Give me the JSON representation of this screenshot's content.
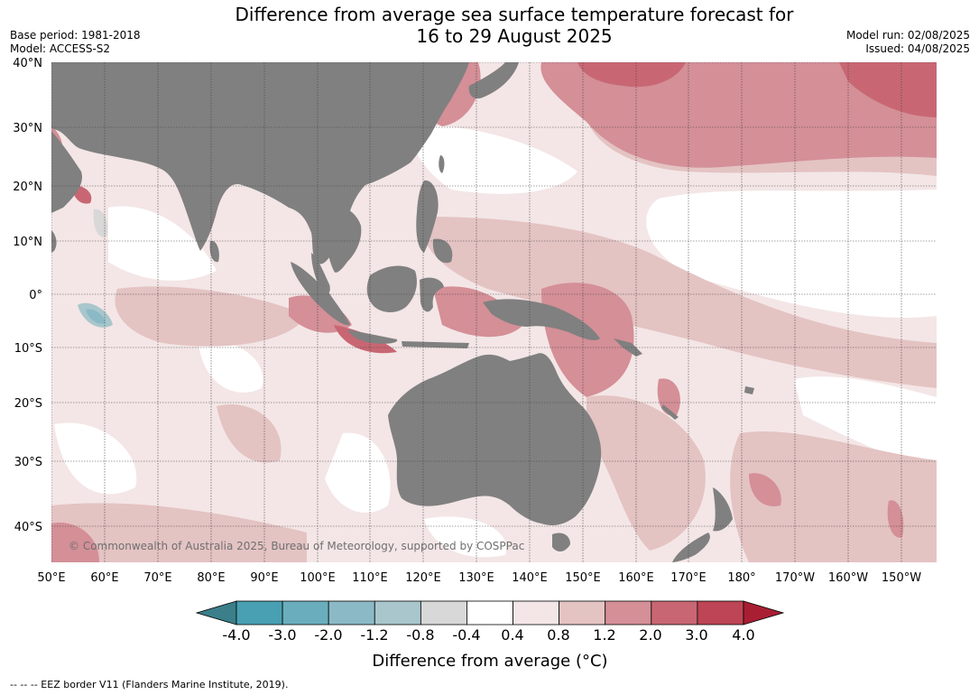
{
  "map": {
    "title_line1": "Difference from average sea surface temperature forecast for",
    "title_line2": "16 to 29 August 2025",
    "base_period": "Base period: 1981-2018",
    "model": "Model: ACCESS-S2",
    "model_run": "Model run: 02/08/2025",
    "issued": "Issued: 04/08/2025",
    "copyright": "© Commonwealth of Australia 2025, Bureau of Meteorology, supported by COSPPac",
    "footnote": "-- -- -- EEZ border V11 (Flanders Marine Institute, 2019).",
    "lat_labels": [
      "40°N",
      "30°N",
      "20°N",
      "10°N",
      "0°",
      "10°S",
      "20°S",
      "30°S",
      "40°S"
    ],
    "lon_labels": [
      "50°E",
      "60°E",
      "70°E",
      "80°E",
      "90°E",
      "100°E",
      "110°E",
      "120°E",
      "130°E",
      "140°E",
      "150°E",
      "160°E",
      "170°E",
      "180°",
      "170°W",
      "160°W",
      "150°W"
    ],
    "land_color": "#808080",
    "colorbar": {
      "title": "Difference from average (°C)",
      "ticks": [
        "-4.0",
        "-3.0",
        "-2.0",
        "-1.2",
        "-0.8",
        "-0.4",
        "0.4",
        "0.8",
        "1.2",
        "2.0",
        "3.0",
        "4.0"
      ],
      "low_extend_color": "#3b7f8a",
      "high_extend_color": "#a81e33",
      "colors": [
        "#49a0b2",
        "#6aaebd",
        "#8bbac6",
        "#a8c6cc",
        "#d8d8d8",
        "#ffffff",
        "#f4e6e6",
        "#e4c3c3",
        "#d48f97",
        "#c86773",
        "#bd4555"
      ]
    }
  }
}
